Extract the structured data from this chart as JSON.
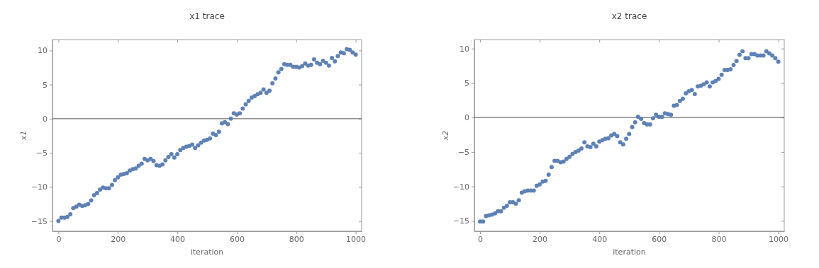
{
  "chart_data": [
    {
      "type": "scatter",
      "title": "x1 trace",
      "xlabel": "iteration",
      "ylabel": "x1",
      "marker": "circle",
      "grid": false,
      "xlim": [
        -20,
        1020
      ],
      "ylim": [
        -16.5,
        11.6
      ],
      "xticks": [
        0,
        200,
        400,
        600,
        800,
        1000
      ],
      "yticks": [
        -15,
        -10,
        -5,
        0,
        5,
        10
      ],
      "ref_lines": [
        {
          "axis": "y",
          "value": 0,
          "color": "#555555"
        }
      ],
      "x": [
        0,
        10,
        20,
        30,
        40,
        50,
        60,
        70,
        80,
        90,
        100,
        110,
        120,
        130,
        140,
        150,
        160,
        170,
        180,
        190,
        200,
        210,
        220,
        230,
        240,
        250,
        260,
        270,
        280,
        290,
        300,
        310,
        320,
        330,
        340,
        350,
        360,
        370,
        380,
        390,
        400,
        410,
        420,
        430,
        440,
        450,
        460,
        470,
        480,
        490,
        500,
        510,
        520,
        530,
        540,
        550,
        560,
        570,
        580,
        590,
        600,
        610,
        620,
        630,
        640,
        650,
        660,
        670,
        680,
        690,
        700,
        710,
        720,
        730,
        740,
        750,
        760,
        770,
        780,
        790,
        800,
        810,
        820,
        830,
        840,
        850,
        860,
        870,
        880,
        890,
        900,
        910,
        920,
        930,
        940,
        950,
        960,
        970,
        980,
        990,
        1000
      ],
      "series": [
        {
          "color": "#5e81b5",
          "values": [
            -15,
            -14.5,
            -14.5,
            -14.4,
            -14,
            -13.1,
            -12.9,
            -12.6,
            -12.8,
            -12.7,
            -12.5,
            -12,
            -11.2,
            -10.9,
            -10.4,
            -10.1,
            -10.2,
            -10.2,
            -9.7,
            -9,
            -8.6,
            -8.2,
            -8.1,
            -8,
            -7.6,
            -7.4,
            -7.3,
            -6.9,
            -6.6,
            -5.9,
            -6.1,
            -5.9,
            -6.2,
            -6.8,
            -6.9,
            -6.7,
            -6.1,
            -5.6,
            -5.2,
            -5.7,
            -5.2,
            -4.6,
            -4.3,
            -4.1,
            -4,
            -3.8,
            -4.3,
            -3.9,
            -3.5,
            -3.2,
            -3.1,
            -2.9,
            -2.2,
            -2.4,
            -1.9,
            -0.7,
            -0.5,
            -0.8,
            0,
            0.8,
            0.6,
            0.8,
            1.5,
            2.1,
            2.6,
            3.1,
            3.3,
            3.6,
            3.8,
            4.3,
            3.8,
            4.1,
            5.2,
            5.9,
            6.8,
            7.3,
            8,
            7.9,
            7.9,
            7.6,
            7.6,
            7.5,
            7.7,
            8.1,
            7.8,
            7.9,
            8.7,
            8.2,
            8,
            8.5,
            8.2,
            7.8,
            8.9,
            8.4,
            9.2,
            9.7,
            9.6,
            10.2,
            10.1,
            9.7,
            9.4
          ]
        }
      ]
    },
    {
      "type": "scatter",
      "title": "x2 trace",
      "xlabel": "iteration",
      "ylabel": "x2",
      "marker": "circle",
      "grid": false,
      "xlim": [
        -19,
        1020
      ],
      "ylim": [
        -16.5,
        11.3
      ],
      "xticks": [
        0,
        200,
        400,
        600,
        800,
        1000
      ],
      "yticks": [
        -15,
        -10,
        -5,
        0,
        5,
        10
      ],
      "ref_lines": [
        {
          "axis": "y",
          "value": 0,
          "color": "#555555"
        }
      ],
      "x": [
        0,
        10,
        20,
        30,
        40,
        50,
        60,
        70,
        80,
        90,
        100,
        110,
        120,
        130,
        140,
        150,
        160,
        170,
        180,
        190,
        200,
        210,
        220,
        230,
        240,
        250,
        260,
        270,
        280,
        290,
        300,
        310,
        320,
        330,
        340,
        350,
        360,
        370,
        380,
        390,
        400,
        410,
        420,
        430,
        440,
        450,
        460,
        470,
        480,
        490,
        500,
        510,
        520,
        530,
        540,
        550,
        560,
        570,
        580,
        590,
        600,
        610,
        620,
        630,
        640,
        650,
        660,
        670,
        680,
        690,
        700,
        710,
        720,
        730,
        740,
        750,
        760,
        770,
        780,
        790,
        800,
        810,
        820,
        830,
        840,
        850,
        860,
        870,
        880,
        890,
        900,
        910,
        920,
        930,
        940,
        950,
        960,
        970,
        980,
        990,
        1000
      ],
      "series": [
        {
          "color": "#5e81b5",
          "values": [
            -15.1,
            -15.1,
            -14.3,
            -14.2,
            -14.1,
            -13.9,
            -13.6,
            -13.6,
            -13.1,
            -12.8,
            -12.3,
            -12.3,
            -12.5,
            -12,
            -10.9,
            -10.7,
            -10.6,
            -10.6,
            -10.6,
            -9.9,
            -9.7,
            -9.3,
            -9.2,
            -8.3,
            -7.2,
            -6.3,
            -6.3,
            -6.5,
            -6.4,
            -6,
            -5.7,
            -5.3,
            -5,
            -4.8,
            -4.5,
            -3.6,
            -4.2,
            -4.3,
            -3.8,
            -4.2,
            -3.5,
            -3.3,
            -3.1,
            -3,
            -2.6,
            -2.4,
            -2.7,
            -3.6,
            -3.9,
            -3.1,
            -2.4,
            -1.4,
            -0.7,
            0.1,
            -0.2,
            -0.8,
            -1,
            -1,
            -0.1,
            0.4,
            0.1,
            0.1,
            0.6,
            0.5,
            0.4,
            1.7,
            1.8,
            2.4,
            2.7,
            3.5,
            3.8,
            4,
            3.4,
            4.5,
            4.6,
            4.8,
            5.1,
            4.5,
            5.1,
            5.3,
            5.6,
            6.2,
            6.9,
            6.9,
            7,
            7.6,
            8.2,
            9.1,
            9.6,
            8.6,
            8.6,
            9.2,
            9.2,
            9,
            9,
            9,
            9.6,
            9.3,
            9,
            8.6,
            8.1
          ]
        }
      ]
    }
  ]
}
